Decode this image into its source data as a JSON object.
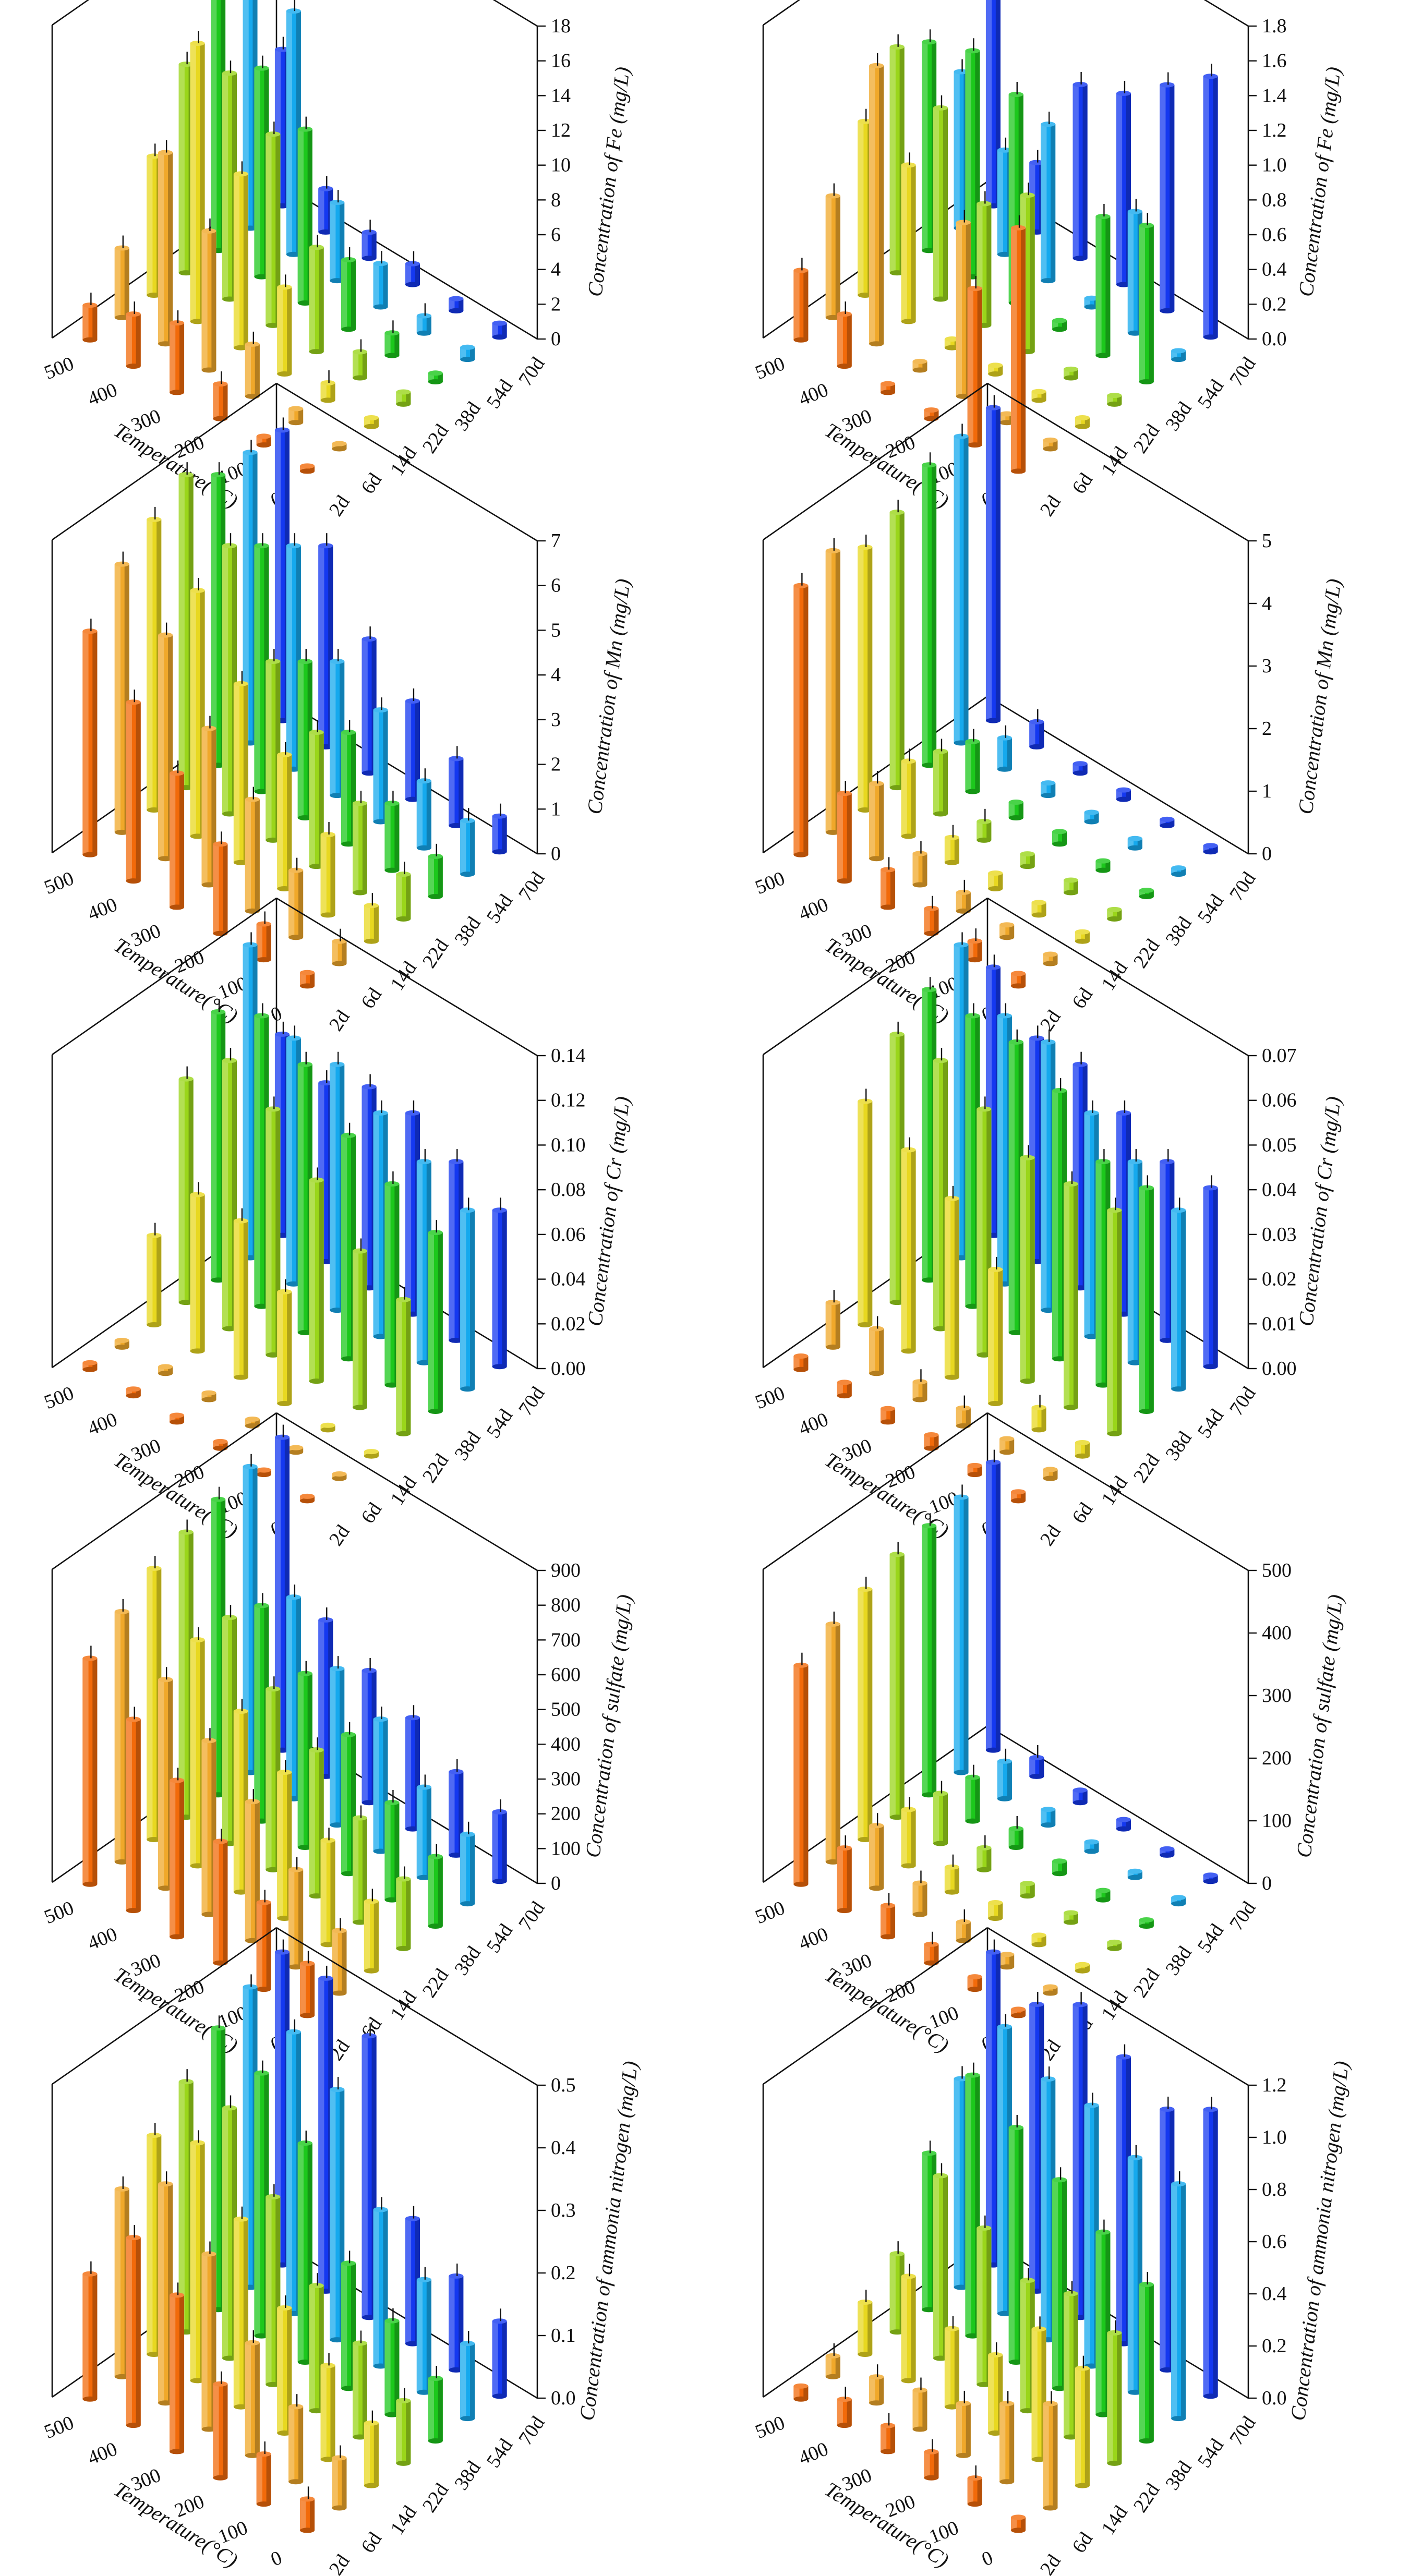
{
  "figure": {
    "type": "3d-bar-grid",
    "temperature_label": "Temperature(°C)",
    "temperatures": [
      "0",
      "100",
      "200",
      "300",
      "400",
      "500"
    ],
    "days": [
      "2d",
      "6d",
      "14d",
      "22d",
      "38d",
      "54d",
      "70d"
    ],
    "day_colors": [
      "#f26a0a",
      "#f0a82a",
      "#e8d820",
      "#9ad61a",
      "#1cc81c",
      "#15a9ee",
      "#1438f0"
    ]
  },
  "chart_data": [
    {
      "type": "bar3d",
      "title": "",
      "zlabel": "Concentration of Fe (mg/L)",
      "zlim": [
        0,
        18
      ],
      "zticks": [
        "0",
        "2",
        "4",
        "6",
        "8",
        "10",
        "12",
        "14",
        "16",
        "18"
      ],
      "x_labels": [
        "0",
        "100",
        "200",
        "300",
        "400",
        "500"
      ],
      "y_labels": [
        "2d",
        "6d",
        "14d",
        "22d",
        "38d",
        "54d",
        "70d"
      ],
      "values": [
        [
          0.3,
          0.3,
          0.5,
          0.7,
          0.5,
          0.7,
          0.8
        ],
        [
          0.5,
          0.8,
          1,
          1.5,
          1.3,
          1,
          0.7
        ],
        [
          2,
          3,
          5,
          6,
          4,
          2.5,
          1.2
        ],
        [
          4,
          8,
          10,
          11,
          10,
          4.5,
          1.5
        ],
        [
          3,
          11,
          16,
          13,
          12,
          14,
          2.5
        ],
        [
          2,
          4,
          8,
          12,
          15,
          17,
          9
        ]
      ]
    },
    {
      "type": "bar3d",
      "title": "",
      "zlabel": "Concentration of Fe (mg/L)",
      "zlim": [
        0,
        1.8
      ],
      "zticks": [
        "0.0",
        "0.2",
        "0.4",
        "0.6",
        "0.8",
        "1.0",
        "1.2",
        "1.4",
        "1.6",
        "1.8"
      ],
      "x_labels": [
        "0",
        "100",
        "200",
        "300",
        "400",
        "500"
      ],
      "y_labels": [
        "2d",
        "6d",
        "14d",
        "22d",
        "38d",
        "54d",
        "70d"
      ],
      "values": [
        [
          1.4,
          0.05,
          0.05,
          0.05,
          0.9,
          0.05,
          1.5
        ],
        [
          0.9,
          0.05,
          0.05,
          0.05,
          0.8,
          0.7,
          1.3
        ],
        [
          0.05,
          1.0,
          0.05,
          0.9,
          0.05,
          0.05,
          1.1
        ],
        [
          0.05,
          0.05,
          0.05,
          0.7,
          1.2,
          0.9,
          1.0
        ],
        [
          0.3,
          1.6,
          0.9,
          1.1,
          1.3,
          0.6,
          0.4
        ],
        [
          0.4,
          0.7,
          1.0,
          1.3,
          1.2,
          0.9,
          1.4
        ]
      ]
    },
    {
      "type": "bar3d",
      "title": "",
      "zlabel": "Concentration of Mn (mg/L)",
      "zlim": [
        0,
        7
      ],
      "zticks": [
        "0",
        "1",
        "2",
        "3",
        "4",
        "5",
        "6",
        "7"
      ],
      "x_labels": [
        "0",
        "100",
        "200",
        "300",
        "400",
        "500"
      ],
      "y_labels": [
        "2d",
        "6d",
        "14d",
        "22d",
        "38d",
        "54d",
        "70d"
      ],
      "values": [
        [
          0.3,
          0.5,
          0.8,
          1,
          0.9,
          1.2,
          0.8
        ],
        [
          0.8,
          1.5,
          1.8,
          2,
          1.5,
          1.5,
          1.5
        ],
        [
          2,
          2.5,
          3,
          3,
          2.5,
          2.5,
          2.2
        ],
        [
          3,
          3.5,
          4,
          4,
          3.5,
          3,
          3
        ],
        [
          4,
          5,
          5.5,
          6,
          5.5,
          5,
          4.5
        ],
        [
          5,
          6,
          6.5,
          7,
          6.5,
          6.5,
          6.5
        ]
      ]
    },
    {
      "type": "bar3d",
      "title": "",
      "zlabel": "Concentration of Mn (mg/L)",
      "zlim": [
        0,
        5
      ],
      "zticks": [
        "0",
        "1",
        "2",
        "3",
        "4",
        "5"
      ],
      "x_labels": [
        "0",
        "100",
        "200",
        "300",
        "400",
        "500"
      ],
      "y_labels": [
        "2d",
        "6d",
        "14d",
        "22d",
        "38d",
        "54d",
        "70d"
      ],
      "values": [
        [
          0.2,
          0.15,
          0.15,
          0.15,
          0.1,
          0.1,
          0.1
        ],
        [
          0.3,
          0.2,
          0.2,
          0.2,
          0.15,
          0.15,
          0.1
        ],
        [
          0.4,
          0.3,
          0.25,
          0.2,
          0.2,
          0.15,
          0.15
        ],
        [
          0.6,
          0.5,
          0.4,
          0.3,
          0.25,
          0.2,
          0.15
        ],
        [
          1.4,
          1.2,
          1.2,
          1.0,
          0.8,
          0.5,
          0.4
        ],
        [
          4.3,
          4.5,
          4.2,
          4.4,
          4.8,
          4.9,
          5.0
        ]
      ]
    },
    {
      "type": "bar3d",
      "title": "",
      "zlabel": "Concentration of Cr (mg/L)",
      "zlim": [
        0,
        0.14
      ],
      "zticks": [
        "0.00",
        "0.02",
        "0.04",
        "0.06",
        "0.08",
        "0.10",
        "0.12",
        "0.14"
      ],
      "x_labels": [
        "0",
        "100",
        "200",
        "300",
        "400",
        "500"
      ],
      "y_labels": [
        "2d",
        "6d",
        "14d",
        "22d",
        "38d",
        "54d",
        "70d"
      ],
      "values": [
        [
          0.002,
          0.002,
          0.002,
          0.06,
          0.08,
          0.08,
          0.07
        ],
        [
          0.002,
          0.002,
          0.002,
          0.07,
          0.09,
          0.09,
          0.08
        ],
        [
          0.003,
          0.003,
          0.05,
          0.09,
          0.1,
          0.1,
          0.09
        ],
        [
          0.003,
          0.003,
          0.07,
          0.11,
          0.12,
          0.11,
          0.09
        ],
        [
          0.003,
          0.003,
          0.07,
          0.12,
          0.13,
          0.11,
          0.08
        ],
        [
          0.003,
          0.003,
          0.04,
          0.1,
          0.12,
          0.14,
          0.09
        ]
      ]
    },
    {
      "type": "bar3d",
      "title": "",
      "zlabel": "Concentration of Cr (mg/L)",
      "zlim": [
        0,
        0.07
      ],
      "zticks": [
        "0.00",
        "0.01",
        "0.02",
        "0.03",
        "0.04",
        "0.05",
        "0.06",
        "0.07"
      ],
      "x_labels": [
        "0",
        "100",
        "200",
        "300",
        "400",
        "500"
      ],
      "y_labels": [
        "2d",
        "6d",
        "14d",
        "22d",
        "38d",
        "54d",
        "70d"
      ],
      "values": [
        [
          0.002,
          0.002,
          0.003,
          0.05,
          0.05,
          0.04,
          0.04
        ],
        [
          0.002,
          0.003,
          0.005,
          0.05,
          0.05,
          0.045,
          0.04
        ],
        [
          0.003,
          0.004,
          0.03,
          0.05,
          0.06,
          0.05,
          0.045
        ],
        [
          0.003,
          0.004,
          0.04,
          0.055,
          0.065,
          0.06,
          0.05
        ],
        [
          0.003,
          0.01,
          0.045,
          0.06,
          0.065,
          0.06,
          0.05
        ],
        [
          0.003,
          0.01,
          0.05,
          0.06,
          0.065,
          0.07,
          0.06
        ]
      ]
    },
    {
      "type": "bar3d",
      "title": "",
      "zlabel": "Concentration of sulfate (mg/L)",
      "zlim": [
        0,
        900
      ],
      "zticks": [
        "0",
        "100",
        "200",
        "300",
        "400",
        "500",
        "600",
        "700",
        "800",
        "900"
      ],
      "x_labels": [
        "0",
        "100",
        "200",
        "300",
        "400",
        "500"
      ],
      "y_labels": [
        "2d",
        "6d",
        "14d",
        "22d",
        "38d",
        "54d",
        "70d"
      ],
      "values": [
        [
          150,
          180,
          200,
          200,
          200,
          200,
          200
        ],
        [
          250,
          280,
          300,
          300,
          280,
          260,
          240
        ],
        [
          350,
          400,
          420,
          420,
          400,
          380,
          320
        ],
        [
          450,
          500,
          520,
          520,
          500,
          450,
          380
        ],
        [
          550,
          600,
          650,
          650,
          620,
          580,
          450
        ],
        [
          650,
          720,
          780,
          820,
          850,
          880,
          900
        ]
      ]
    },
    {
      "type": "bar3d",
      "title": "",
      "zlabel": "Concentration of sulfate (mg/L)",
      "zlim": [
        0,
        500
      ],
      "zticks": [
        "0",
        "100",
        "200",
        "300",
        "400",
        "500"
      ],
      "x_labels": [
        "0",
        "100",
        "200",
        "300",
        "400",
        "500"
      ],
      "y_labels": [
        "2d",
        "6d",
        "14d",
        "22d",
        "38d",
        "54d",
        "70d"
      ],
      "values": [
        [
          10,
          10,
          10,
          10,
          10,
          10,
          10
        ],
        [
          20,
          20,
          15,
          15,
          15,
          10,
          10
        ],
        [
          30,
          30,
          25,
          20,
          20,
          15,
          15
        ],
        [
          50,
          50,
          40,
          35,
          30,
          25,
          20
        ],
        [
          100,
          100,
          90,
          80,
          70,
          60,
          30
        ],
        [
          350,
          380,
          400,
          420,
          430,
          440,
          460
        ]
      ]
    },
    {
      "type": "bar3d",
      "title": "",
      "zlabel": "Concentration of ammonia nitrogen (mg/L)",
      "zlim": [
        0,
        0.5
      ],
      "zticks": [
        "0.0",
        "0.1",
        "0.2",
        "0.3",
        "0.4",
        "0.5"
      ],
      "x_labels": [
        "0",
        "100",
        "200",
        "300",
        "400",
        "500"
      ],
      "y_labels": [
        "2d",
        "6d",
        "14d",
        "22d",
        "38d",
        "54d",
        "70d"
      ],
      "values": [
        [
          0.05,
          0.08,
          0.1,
          0.1,
          0.1,
          0.12,
          0.12
        ],
        [
          0.08,
          0.12,
          0.15,
          0.15,
          0.15,
          0.18,
          0.15
        ],
        [
          0.15,
          0.18,
          0.2,
          0.2,
          0.2,
          0.25,
          0.2
        ],
        [
          0.25,
          0.28,
          0.3,
          0.3,
          0.35,
          0.4,
          0.45
        ],
        [
          0.3,
          0.35,
          0.38,
          0.4,
          0.42,
          0.45,
          0.5
        ],
        [
          0.2,
          0.3,
          0.35,
          0.4,
          0.45,
          0.48,
          0.5
        ]
      ]
    },
    {
      "type": "bar3d",
      "title": "",
      "zlabel": "Concentration of ammonia nitrogen (mg/L)",
      "zlim": [
        0,
        1.2
      ],
      "zticks": [
        "0.0",
        "0.2",
        "0.4",
        "0.6",
        "0.8",
        "1.0",
        "1.2"
      ],
      "x_labels": [
        "0",
        "100",
        "200",
        "300",
        "400",
        "500"
      ],
      "y_labels": [
        "2d",
        "6d",
        "14d",
        "22d",
        "38d",
        "54d",
        "70d"
      ],
      "values": [
        [
          0.05,
          0.4,
          0.45,
          0.5,
          0.6,
          0.9,
          1.1
        ],
        [
          0.1,
          0.3,
          0.5,
          0.55,
          0.7,
          0.9,
          1.0
        ],
        [
          0.1,
          0.2,
          0.3,
          0.5,
          0.8,
          1.0,
          1.1
        ],
        [
          0.1,
          0.15,
          0.3,
          0.6,
          0.9,
          1.0,
          1.2
        ],
        [
          0.1,
          0.1,
          0.4,
          0.7,
          1.0,
          1.1,
          1.1
        ],
        [
          0.05,
          0.08,
          0.2,
          0.3,
          0.6,
          0.8,
          1.2
        ]
      ]
    }
  ]
}
